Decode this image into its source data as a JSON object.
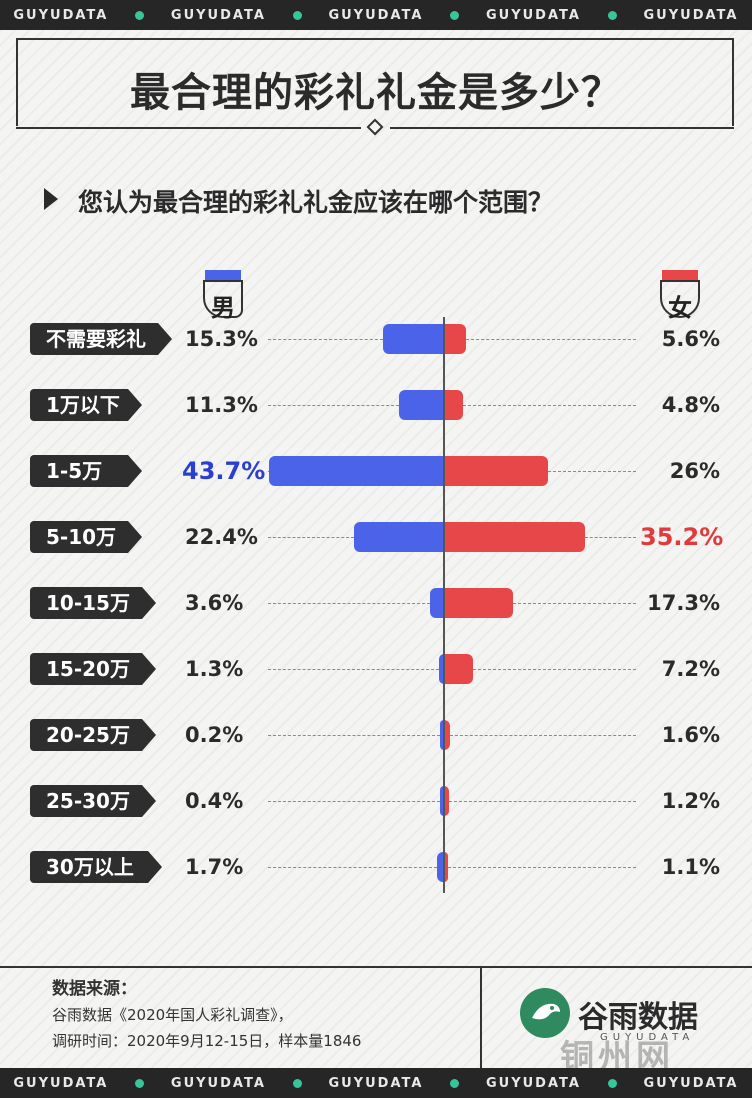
{
  "strip": {
    "text": "GUYUDATA"
  },
  "title": "最合理的彩礼礼金是多少？",
  "question": "您认为最合理的彩礼礼金应该在哪个范围？",
  "legend": {
    "male": "男",
    "female": "女"
  },
  "colors": {
    "male": "#4a63e8",
    "female": "#e8474a",
    "male_highlight": "#2a3fd0",
    "female_highlight": "#e03a3d",
    "dark": "#2e2e2e"
  },
  "chart_data": {
    "type": "bar",
    "categories": [
      "不需要彩礼",
      "1万以下",
      "1-5万",
      "5-10万",
      "10-15万",
      "15-20万",
      "20-25万",
      "25-30万",
      "30万以上"
    ],
    "series": [
      {
        "name": "男",
        "values": [
          15.3,
          11.3,
          43.7,
          22.4,
          3.6,
          1.3,
          0.2,
          0.4,
          1.7
        ],
        "labels": [
          "15.3%",
          "11.3%",
          "43.7%",
          "22.4%",
          "3.6%",
          "1.3%",
          "0.2%",
          "0.4%",
          "1.7%"
        ]
      },
      {
        "name": "女",
        "values": [
          5.6,
          4.8,
          26,
          35.2,
          17.3,
          7.2,
          1.6,
          1.2,
          1.1
        ],
        "labels": [
          "5.6%",
          "4.8%",
          "26%",
          "35.2%",
          "17.3%",
          "7.2%",
          "1.6%",
          "1.2%",
          "1.1%"
        ]
      }
    ],
    "highlight": {
      "male_index": 2,
      "female_index": 3
    }
  },
  "footer": {
    "source_title": "数据来源：",
    "source_line1": "谷雨数据《2020年国人彩礼调查》，",
    "source_line2": "调研时间：2020年9月12-15日，样本量1846"
  },
  "brand": {
    "name": "谷雨数据",
    "sub": "GUYUDATA",
    "logo_icon": "bird-logo-icon"
  },
  "watermark": "铜州网"
}
